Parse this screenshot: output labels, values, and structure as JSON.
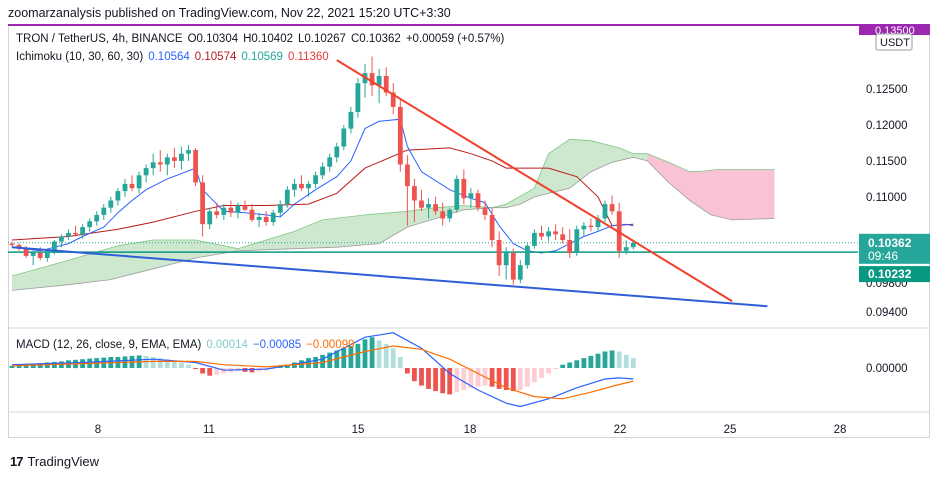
{
  "header": {
    "published": "zoomarzanalysis published on TradingView.com, Nov 22, 2021 15:20 UTC+3:30"
  },
  "legend_main": {
    "symbol": "TRON / TetherUS, 4h, BINANCE",
    "open": "O0.10304",
    "high": "H0.10402",
    "low": "L0.10267",
    "close": "C0.10362",
    "change": "+0.00059 (+0.57%)"
  },
  "legend_ichimoku": {
    "name": "Ichimoku (10, 30, 60, 30)",
    "v1": "0.10564",
    "v2": "0.10574",
    "v3": "0.10569",
    "v4": "0.11360"
  },
  "legend_macd": {
    "name": "MACD (12, 26, close, 9, EMA, EMA)",
    "v1": "0.00014",
    "v2": "−0.00085",
    "v3": "−0.00099"
  },
  "price_axis": {
    "currency": "USDT",
    "top_label": "0.13500",
    "last_price": "0.10362",
    "countdown": "09:46",
    "line_price": "0.10232"
  },
  "macd_axis": {
    "zero": "0.00000"
  },
  "footer": {
    "logo": "17",
    "brand": "TradingView"
  },
  "colors": {
    "bull": "#26a69a",
    "bear": "#ef5350",
    "tenkan": "#2962ff",
    "kijun": "#b71c1c",
    "cloud_bull": "#a5d6a7",
    "cloud_bear": "#f8bbd0",
    "red_trend": "#f23f2a",
    "blue_trend": "#2e5fd8",
    "h_line": "#089981",
    "macd_line": "#2962ff",
    "signal_line": "#ff6d00",
    "top_line": "#9c27b0"
  },
  "chart_data": {
    "type": "candlestick",
    "price_range": [
      0.0915,
      0.1318
    ],
    "x_ticks": [
      "8",
      "11",
      "15",
      "18",
      "22",
      "25",
      "28"
    ],
    "y_ticks": [
      "0.12500",
      "0.12000",
      "0.11500",
      "0.11000",
      "0.09800",
      "0.09400"
    ],
    "price_levels": {
      "top_line": 0.135,
      "horizontal_line": 0.10232,
      "last_close": 0.10362
    },
    "candles": [
      [
        0.1035,
        0.1038,
        0.103,
        0.1033
      ],
      [
        0.1033,
        0.1036,
        0.1025,
        0.1028
      ],
      [
        0.1028,
        0.1032,
        0.1015,
        0.1018
      ],
      [
        0.1018,
        0.1025,
        0.1005,
        0.1022
      ],
      [
        0.1022,
        0.103,
        0.1012,
        0.1015
      ],
      [
        0.1015,
        0.1028,
        0.101,
        0.1025
      ],
      [
        0.1025,
        0.104,
        0.102,
        0.1038
      ],
      [
        0.1038,
        0.1048,
        0.103,
        0.1045
      ],
      [
        0.1045,
        0.1055,
        0.104,
        0.105
      ],
      [
        0.105,
        0.106,
        0.1045,
        0.1048
      ],
      [
        0.1048,
        0.1062,
        0.1042,
        0.1058
      ],
      [
        0.1058,
        0.107,
        0.1052,
        0.1066
      ],
      [
        0.1066,
        0.108,
        0.106,
        0.1075
      ],
      [
        0.1075,
        0.109,
        0.1068,
        0.1085
      ],
      [
        0.1085,
        0.11,
        0.1078,
        0.1095
      ],
      [
        0.1095,
        0.1112,
        0.1088,
        0.1108
      ],
      [
        0.1108,
        0.1125,
        0.11,
        0.1118
      ],
      [
        0.1118,
        0.113,
        0.1108,
        0.1112
      ],
      [
        0.1112,
        0.1135,
        0.1105,
        0.113
      ],
      [
        0.113,
        0.1145,
        0.112,
        0.114
      ],
      [
        0.114,
        0.116,
        0.113,
        0.1148
      ],
      [
        0.1148,
        0.1165,
        0.1135,
        0.1145
      ],
      [
        0.1145,
        0.116,
        0.113,
        0.1155
      ],
      [
        0.1155,
        0.1168,
        0.114,
        0.115
      ],
      [
        0.115,
        0.117,
        0.1138,
        0.116
      ],
      [
        0.116,
        0.1172,
        0.115,
        0.1165
      ],
      [
        0.1165,
        0.1168,
        0.1115,
        0.112
      ],
      [
        0.112,
        0.113,
        0.1045,
        0.1062
      ],
      [
        0.1062,
        0.1085,
        0.1055,
        0.108
      ],
      [
        0.108,
        0.1092,
        0.107,
        0.1075
      ],
      [
        0.1075,
        0.109,
        0.1068,
        0.1085
      ],
      [
        0.1085,
        0.1095,
        0.1072,
        0.1078
      ],
      [
        0.1078,
        0.1092,
        0.107,
        0.1088
      ],
      [
        0.1088,
        0.1095,
        0.108,
        0.1082
      ],
      [
        0.1082,
        0.109,
        0.1065,
        0.1068
      ],
      [
        0.1068,
        0.1078,
        0.1058,
        0.1072
      ],
      [
        0.1072,
        0.108,
        0.106,
        0.1065
      ],
      [
        0.1065,
        0.1082,
        0.106,
        0.1078
      ],
      [
        0.1078,
        0.1095,
        0.1072,
        0.109
      ],
      [
        0.109,
        0.1115,
        0.1085,
        0.111
      ],
      [
        0.111,
        0.1125,
        0.11,
        0.1118
      ],
      [
        0.1118,
        0.113,
        0.1108,
        0.1112
      ],
      [
        0.1112,
        0.1122,
        0.11,
        0.1118
      ],
      [
        0.1118,
        0.1135,
        0.1112,
        0.113
      ],
      [
        0.113,
        0.1148,
        0.1125,
        0.1142
      ],
      [
        0.1142,
        0.116,
        0.1135,
        0.1155
      ],
      [
        0.1155,
        0.1175,
        0.1148,
        0.117
      ],
      [
        0.117,
        0.12,
        0.1165,
        0.1195
      ],
      [
        0.1195,
        0.1225,
        0.1188,
        0.1218
      ],
      [
        0.1218,
        0.1265,
        0.121,
        0.1258
      ],
      [
        0.1258,
        0.1285,
        0.1238,
        0.1272
      ],
      [
        0.1272,
        0.1295,
        0.124,
        0.1255
      ],
      [
        0.1255,
        0.1278,
        0.123,
        0.1268
      ],
      [
        0.1268,
        0.128,
        0.124,
        0.1245
      ],
      [
        0.1245,
        0.1258,
        0.1215,
        0.1225
      ],
      [
        0.1225,
        0.1235,
        0.1135,
        0.1145
      ],
      [
        0.1145,
        0.1158,
        0.106,
        0.1115
      ],
      [
        0.1115,
        0.1125,
        0.1065,
        0.1095
      ],
      [
        0.1095,
        0.111,
        0.108,
        0.1085
      ],
      [
        0.1085,
        0.1098,
        0.107,
        0.109
      ],
      [
        0.109,
        0.11,
        0.1075,
        0.108
      ],
      [
        0.108,
        0.1092,
        0.106,
        0.107
      ],
      [
        0.107,
        0.1085,
        0.1065,
        0.1082
      ],
      [
        0.1082,
        0.113,
        0.1078,
        0.1125
      ],
      [
        0.1125,
        0.1138,
        0.109,
        0.1098
      ],
      [
        0.1098,
        0.1112,
        0.1085,
        0.1105
      ],
      [
        0.1105,
        0.111,
        0.108,
        0.1085
      ],
      [
        0.1085,
        0.1095,
        0.1068,
        0.1075
      ],
      [
        0.1075,
        0.1085,
        0.103,
        0.104
      ],
      [
        0.104,
        0.1052,
        0.099,
        0.1005
      ],
      [
        0.1005,
        0.103,
        0.0985,
        0.1022
      ],
      [
        0.1022,
        0.1028,
        0.0978,
        0.0985
      ],
      [
        0.0985,
        0.1012,
        0.098,
        0.1005
      ],
      [
        0.1005,
        0.1035,
        0.1,
        0.1032
      ],
      [
        0.1032,
        0.1055,
        0.1028,
        0.105
      ],
      [
        0.105,
        0.106,
        0.104,
        0.1045
      ],
      [
        0.1045,
        0.1058,
        0.1038,
        0.1052
      ],
      [
        0.1052,
        0.1062,
        0.104,
        0.1048
      ],
      [
        0.1048,
        0.1058,
        0.1035,
        0.104
      ],
      [
        0.104,
        0.1055,
        0.1015,
        0.1022
      ],
      [
        0.1022,
        0.106,
        0.1018,
        0.1055
      ],
      [
        0.1055,
        0.1065,
        0.1045,
        0.106
      ],
      [
        0.106,
        0.107,
        0.1052,
        0.1058
      ],
      [
        0.1058,
        0.1075,
        0.1052,
        0.107
      ],
      [
        0.107,
        0.1095,
        0.1065,
        0.109
      ],
      [
        0.109,
        0.1102,
        0.1075,
        0.108
      ],
      [
        0.108,
        0.1092,
        0.1015,
        0.1025
      ],
      [
        0.1025,
        0.104,
        0.102,
        0.103
      ],
      [
        0.103,
        0.104,
        0.1027,
        0.1036
      ]
    ],
    "tenkan": [
      [
        0,
        0.103
      ],
      [
        4,
        0.1025
      ],
      [
        8,
        0.1035
      ],
      [
        10,
        0.1045
      ],
      [
        13,
        0.1058
      ],
      [
        15,
        0.1078
      ],
      [
        17,
        0.1095
      ],
      [
        19,
        0.111
      ],
      [
        22,
        0.1125
      ],
      [
        26,
        0.114
      ],
      [
        27,
        0.111
      ],
      [
        30,
        0.108
      ],
      [
        33,
        0.1078
      ],
      [
        36,
        0.1075
      ],
      [
        38,
        0.1072
      ],
      [
        40,
        0.109
      ],
      [
        43,
        0.111
      ],
      [
        46,
        0.1128
      ],
      [
        48,
        0.115
      ],
      [
        50,
        0.1195
      ],
      [
        52,
        0.1205
      ],
      [
        55,
        0.1208
      ],
      [
        56,
        0.117
      ],
      [
        58,
        0.1135
      ],
      [
        62,
        0.111
      ],
      [
        65,
        0.1098
      ],
      [
        67,
        0.1092
      ],
      [
        69,
        0.106
      ],
      [
        71,
        0.1035
      ],
      [
        73,
        0.1025
      ],
      [
        75,
        0.1022
      ],
      [
        77,
        0.1025
      ],
      [
        79,
        0.1035
      ],
      [
        81,
        0.1045
      ],
      [
        83,
        0.1052
      ],
      [
        85,
        0.106
      ],
      [
        87,
        0.1062
      ],
      [
        88,
        0.106
      ]
    ],
    "kijun": [
      [
        0,
        0.104
      ],
      [
        8,
        0.1045
      ],
      [
        15,
        0.1055
      ],
      [
        20,
        0.1065
      ],
      [
        26,
        0.108
      ],
      [
        30,
        0.1088
      ],
      [
        36,
        0.1088
      ],
      [
        42,
        0.109
      ],
      [
        46,
        0.1105
      ],
      [
        50,
        0.114
      ],
      [
        56,
        0.1165
      ],
      [
        62,
        0.1168
      ],
      [
        65,
        0.116
      ],
      [
        68,
        0.115
      ],
      [
        70,
        0.114
      ],
      [
        76,
        0.114
      ],
      [
        80,
        0.1128
      ],
      [
        83,
        0.11
      ],
      [
        85,
        0.106
      ],
      [
        88,
        0.1062
      ]
    ],
    "cloud_upper": [
      [
        0,
        0.099
      ],
      [
        8,
        0.1012
      ],
      [
        15,
        0.1032
      ],
      [
        20,
        0.104
      ],
      [
        26,
        0.104
      ],
      [
        32,
        0.1028
      ],
      [
        36,
        0.104
      ],
      [
        40,
        0.1052
      ],
      [
        44,
        0.1068
      ],
      [
        50,
        0.1075
      ],
      [
        56,
        0.108
      ],
      [
        60,
        0.1085
      ],
      [
        64,
        0.1088
      ],
      [
        68,
        0.1085
      ],
      [
        70,
        0.109
      ],
      [
        74,
        0.1112
      ],
      [
        76,
        0.116
      ],
      [
        79,
        0.118
      ],
      [
        82,
        0.1178
      ],
      [
        86,
        0.1168
      ],
      [
        88,
        0.116
      ],
      [
        90,
        0.116
      ],
      [
        93,
        0.1148
      ],
      [
        96,
        0.1135
      ],
      [
        98,
        0.1136
      ],
      [
        100,
        0.1138
      ],
      [
        108,
        0.1138
      ]
    ],
    "cloud_lower": [
      [
        0,
        0.097
      ],
      [
        8,
        0.0978
      ],
      [
        14,
        0.0985
      ],
      [
        20,
        0.1
      ],
      [
        26,
        0.1015
      ],
      [
        32,
        0.1025
      ],
      [
        40,
        0.1028
      ],
      [
        46,
        0.103
      ],
      [
        52,
        0.1035
      ],
      [
        56,
        0.1058
      ],
      [
        60,
        0.107
      ],
      [
        64,
        0.1082
      ],
      [
        68,
        0.1085
      ],
      [
        70,
        0.1085
      ],
      [
        72,
        0.109
      ],
      [
        74,
        0.11
      ],
      [
        76,
        0.1105
      ],
      [
        79,
        0.1112
      ],
      [
        82,
        0.1135
      ],
      [
        85,
        0.1148
      ],
      [
        88,
        0.1155
      ],
      [
        90,
        0.115
      ],
      [
        93,
        0.112
      ],
      [
        96,
        0.1095
      ],
      [
        99,
        0.1075
      ],
      [
        102,
        0.1068
      ],
      [
        108,
        0.107
      ]
    ],
    "trendlines": [
      {
        "color": "red",
        "from": [
          46,
          0.129
        ],
        "to": [
          102,
          0.0955
        ]
      },
      {
        "color": "blue",
        "from": [
          0,
          0.103
        ],
        "to": [
          107,
          0.0948
        ]
      }
    ],
    "macd": {
      "histogram": [
        0.2,
        0.3,
        0.35,
        0.4,
        0.45,
        0.5,
        0.55,
        0.6,
        0.7,
        0.75,
        0.8,
        0.85,
        0.9,
        0.95,
        1.0,
        1.0,
        1.05,
        1.1,
        1.15,
        1.1,
        1.0,
        0.9,
        0.8,
        0.6,
        0.5,
        0.3,
        -0.1,
        -0.5,
        -0.7,
        -0.6,
        -0.5,
        -0.4,
        -0.3,
        -0.35,
        -0.4,
        -0.3,
        -0.2,
        -0.1,
        0.1,
        0.3,
        0.5,
        0.7,
        0.9,
        1.0,
        1.2,
        1.4,
        1.6,
        1.8,
        2.0,
        2.2,
        2.6,
        2.8,
        2.5,
        2.2,
        1.8,
        1.0,
        -0.5,
        -1.2,
        -1.6,
        -1.9,
        -2.1,
        -2.3,
        -2.4,
        -2.2,
        -2.0,
        -1.8,
        -1.7,
        -1.6,
        -1.7,
        -1.9,
        -2.0,
        -2.1,
        -2.0,
        -1.7,
        -1.3,
        -0.9,
        -0.5,
        -0.1,
        0.3,
        0.5,
        0.7,
        0.9,
        1.1,
        1.3,
        1.5,
        1.6,
        1.5,
        1.2,
        0.9
      ],
      "macd_line": [
        [
          0,
          0.3
        ],
        [
          10,
          0.5
        ],
        [
          20,
          0.8
        ],
        [
          26,
          0.5
        ],
        [
          30,
          -0.2
        ],
        [
          36,
          -0.1
        ],
        [
          44,
          0.8
        ],
        [
          50,
          2.8
        ],
        [
          54,
          3.2
        ],
        [
          58,
          1.8
        ],
        [
          62,
          -0.5
        ],
        [
          66,
          -2.0
        ],
        [
          70,
          -3.2
        ],
        [
          72,
          -3.5
        ],
        [
          76,
          -2.8
        ],
        [
          80,
          -1.8
        ],
        [
          84,
          -1.0
        ],
        [
          86,
          -0.9
        ],
        [
          88,
          -1.0
        ]
      ],
      "signal_line": [
        [
          0,
          0.2
        ],
        [
          10,
          0.4
        ],
        [
          20,
          0.6
        ],
        [
          26,
          0.6
        ],
        [
          30,
          0.3
        ],
        [
          36,
          0.1
        ],
        [
          44,
          0.5
        ],
        [
          50,
          1.5
        ],
        [
          54,
          2.0
        ],
        [
          58,
          1.7
        ],
        [
          62,
          0.8
        ],
        [
          66,
          -0.5
        ],
        [
          70,
          -1.8
        ],
        [
          74,
          -2.6
        ],
        [
          78,
          -2.8
        ],
        [
          82,
          -2.2
        ],
        [
          86,
          -1.5
        ],
        [
          88,
          -1.2
        ]
      ]
    }
  }
}
